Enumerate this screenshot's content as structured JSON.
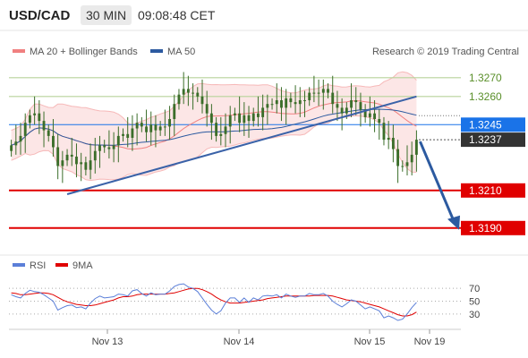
{
  "header": {
    "symbol": "USD/CAD",
    "timeframe": "30 MIN",
    "time": "09:08:48 CET"
  },
  "legend": {
    "bollinger": "MA 20 + Bollinger Bands",
    "ma50": "MA 50",
    "credit": "Research © 2019 Trading Central",
    "rsi": "RSI",
    "rsi_ma": "9MA"
  },
  "colors": {
    "bollinger": "#f08080",
    "ma50": "#2c5aa0",
    "candle": "#3b6e2a",
    "trend": "#3a62a8",
    "resistance": "#b7d39a",
    "pivot": "#1a73e8",
    "support": "#e00000",
    "rsi": "#5b7fd8",
    "rsi_ma": "#e00000"
  },
  "chart_data": [
    {
      "type": "line",
      "subtype": "candlestick",
      "title": "USD/CAD 30 MIN",
      "x_labels": [
        "Nov 13",
        "Nov 14",
        "Nov 15",
        "Nov 19"
      ],
      "ylim": [
        1.3178,
        1.3278
      ],
      "levels": [
        {
          "label": "1.3270",
          "value": 1.327,
          "kind": "resistance"
        },
        {
          "label": "1.3260",
          "value": 1.326,
          "kind": "resistance"
        },
        {
          "label": "1.3245",
          "value": 1.3245,
          "kind": "pivot"
        },
        {
          "label": "1.3237",
          "value": 1.3237,
          "kind": "last"
        },
        {
          "label": "1.3210",
          "value": 1.321,
          "kind": "support"
        },
        {
          "label": "1.3190",
          "value": 1.319,
          "kind": "support"
        }
      ],
      "closes": [
        1.3234,
        1.3236,
        1.3239,
        1.3246,
        1.325,
        1.3251,
        1.3247,
        1.3242,
        1.3239,
        1.3233,
        1.3223,
        1.3226,
        1.3229,
        1.3228,
        1.3224,
        1.3225,
        1.3221,
        1.3226,
        1.3231,
        1.3234,
        1.3233,
        1.3232,
        1.3234,
        1.3239,
        1.324,
        1.3238,
        1.3243,
        1.3246,
        1.3244,
        1.3241,
        1.3245,
        1.3242,
        1.3244,
        1.3244,
        1.3248,
        1.3256,
        1.3261,
        1.3264,
        1.3262,
        1.3262,
        1.326,
        1.3256,
        1.3251,
        1.3246,
        1.3239,
        1.324,
        1.3244,
        1.325,
        1.3251,
        1.3246,
        1.325,
        1.3247,
        1.3251,
        1.3249,
        1.3254,
        1.3256,
        1.3256,
        1.3258,
        1.3254,
        1.3259,
        1.3257,
        1.3256,
        1.3258,
        1.3258,
        1.3262,
        1.3262,
        1.3262,
        1.3264,
        1.3262,
        1.3256,
        1.3254,
        1.3251,
        1.3254,
        1.3258,
        1.3257,
        1.3253,
        1.3249,
        1.3251,
        1.3248,
        1.3246,
        1.3237,
        1.3238,
        1.3232,
        1.3223,
        1.3223,
        1.3225,
        1.3229,
        1.3237
      ],
      "rsi_ylim": [
        20,
        80
      ],
      "rsi_ticks": [
        30,
        50,
        70
      ],
      "rsi": [
        60,
        57,
        55,
        62,
        67,
        65,
        64,
        60,
        55,
        50,
        36,
        40,
        43,
        44,
        40,
        41,
        38,
        47,
        54,
        58,
        55,
        56,
        57,
        61,
        60,
        58,
        66,
        68,
        62,
        58,
        63,
        60,
        61,
        61,
        66,
        73,
        76,
        77,
        72,
        70,
        65,
        55,
        45,
        36,
        30,
        35,
        47,
        55,
        55,
        48,
        55,
        48,
        55,
        52,
        58,
        59,
        58,
        60,
        55,
        61,
        58,
        56,
        58,
        58,
        62,
        60,
        60,
        62,
        58,
        50,
        45,
        41,
        46,
        52,
        50,
        44,
        38,
        41,
        38,
        35,
        24,
        27,
        24,
        20,
        22,
        30,
        40,
        48
      ],
      "rsi_ma": [
        63,
        62,
        60,
        60,
        61,
        62,
        63,
        63,
        62,
        60,
        56,
        52,
        49,
        47,
        45,
        44,
        43,
        43,
        44,
        46,
        48,
        50,
        52,
        55,
        57,
        57,
        58,
        60,
        61,
        61,
        61,
        61,
        61,
        61,
        62,
        63,
        65,
        67,
        69,
        70,
        70,
        68,
        65,
        61,
        56,
        52,
        49,
        47,
        47,
        47,
        48,
        49,
        50,
        51,
        52,
        54,
        55,
        56,
        57,
        58,
        58,
        58,
        58,
        58,
        58,
        59,
        59,
        59,
        59,
        58,
        56,
        54,
        52,
        51,
        50,
        49,
        47,
        45,
        43,
        41,
        38,
        35,
        32,
        29,
        27,
        27,
        29,
        33
      ]
    }
  ]
}
